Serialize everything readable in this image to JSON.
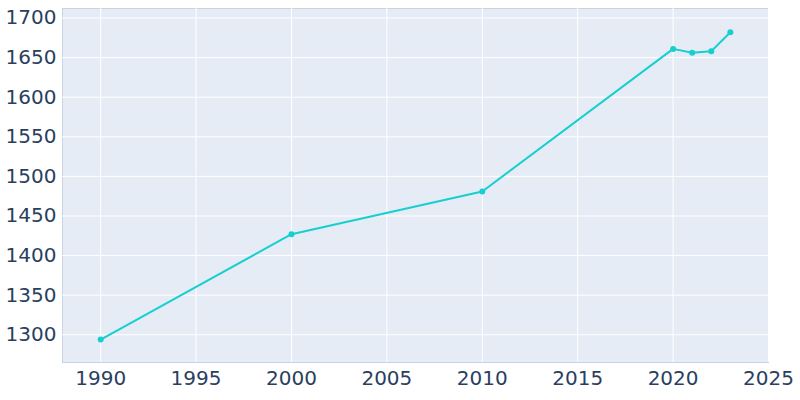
{
  "chart_data": {
    "type": "line",
    "x": [
      1990,
      2000,
      2010,
      2020,
      2021,
      2022,
      2023
    ],
    "values": [
      1294,
      1427,
      1481,
      1661,
      1656,
      1658,
      1682
    ],
    "color": "#17cfcf",
    "marker": "circle",
    "xlim": [
      1988,
      2025
    ],
    "xticks": [
      1990,
      1995,
      2000,
      2005,
      2010,
      2015,
      2020,
      2025
    ],
    "ylim": [
      1265,
      1712
    ],
    "yticks": [
      1300,
      1350,
      1400,
      1450,
      1500,
      1550,
      1600,
      1650,
      1700
    ],
    "grid": true
  }
}
